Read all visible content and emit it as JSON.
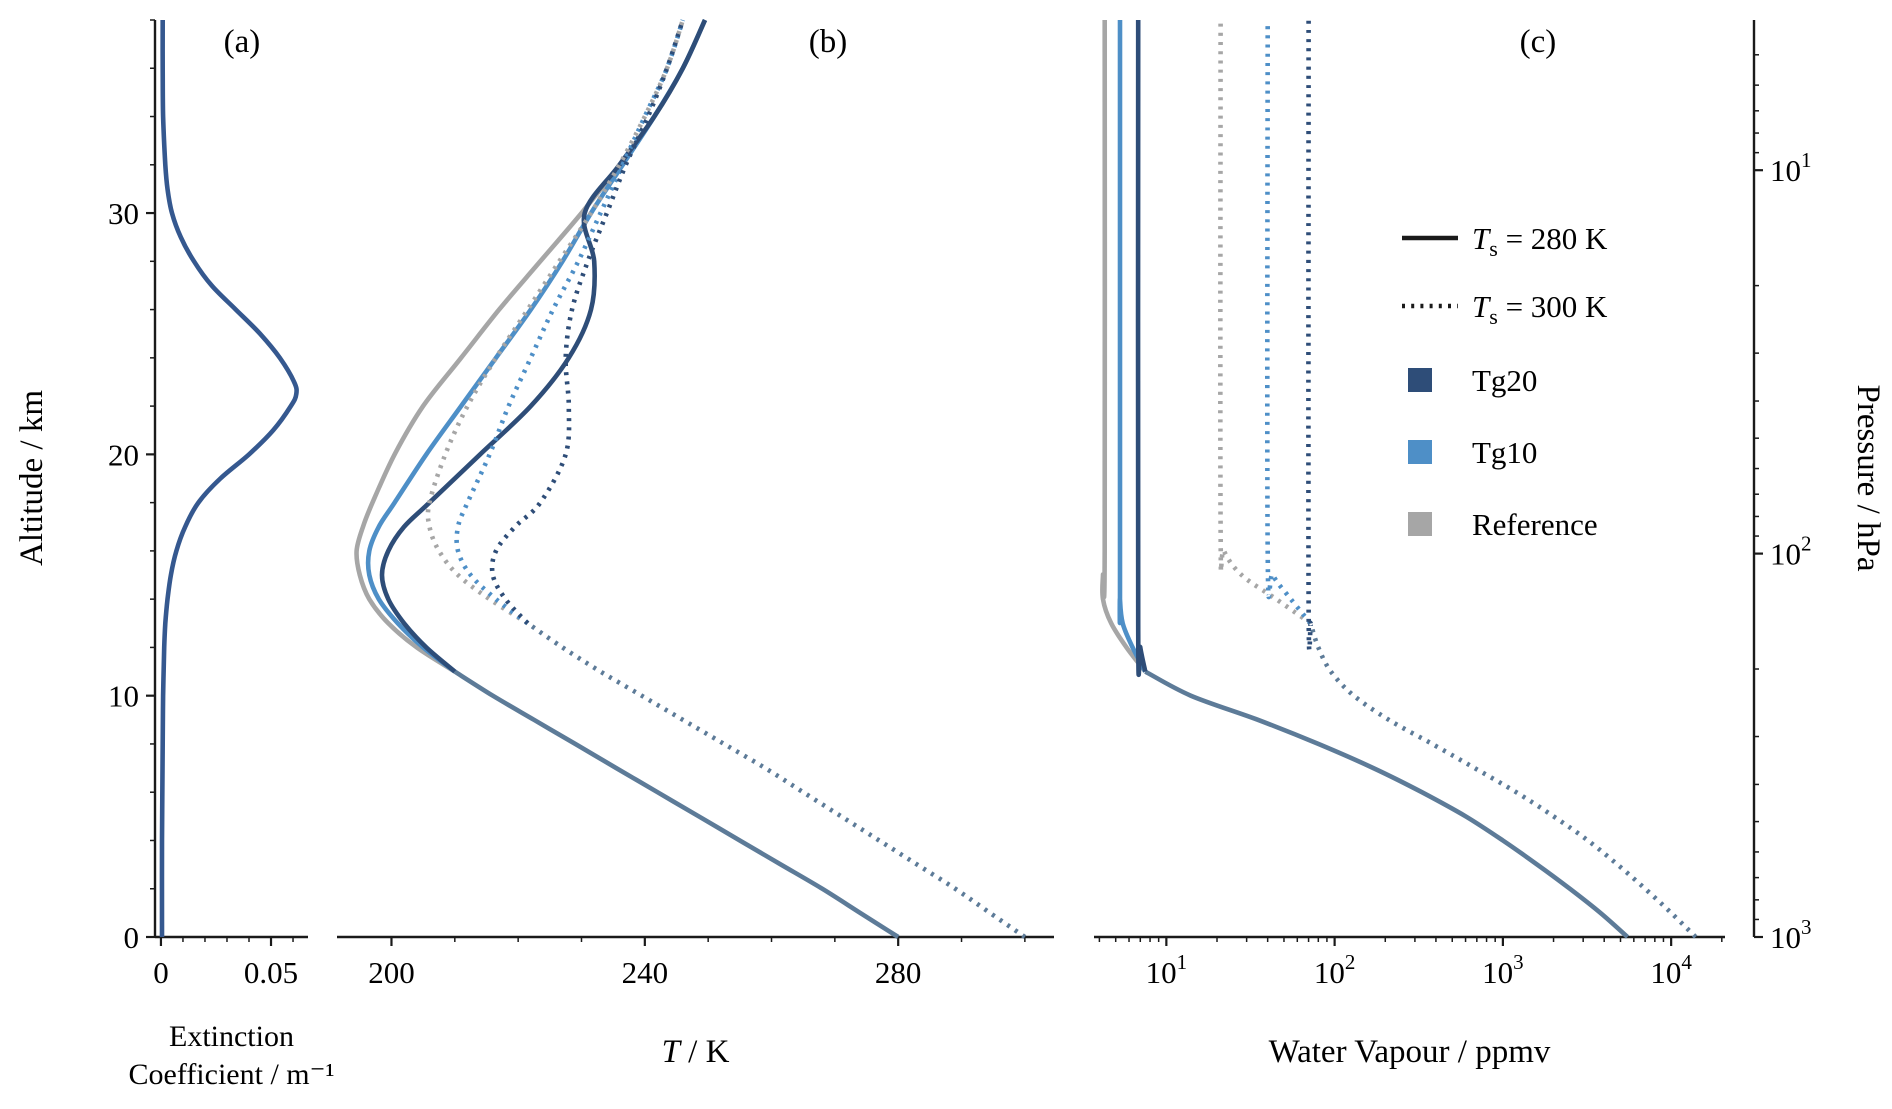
{
  "figure": {
    "background": "#ffffff",
    "colors": {
      "tg20": "#2e4d78",
      "tg10": "#4e8fc7",
      "reference": "#a6a6a6",
      "shared_troposphere": "#5d7b98",
      "extinction_line": "#35588f",
      "axis": "#1a1a1a"
    }
  },
  "chart_data": {
    "type": "line",
    "figure_kind": "atmospheric-vertical-profiles",
    "shared_y": {
      "label": "Altitude / km",
      "lim": [
        0,
        38
      ],
      "ticks": [
        0,
        10,
        20,
        30
      ],
      "tick_labels": [
        "0",
        "10",
        "20",
        "30"
      ],
      "minor_step": 2
    },
    "panels": [
      {
        "id": "extinction",
        "label": "(a)",
        "xlabel_lines": [
          "Extinction",
          "Coefficient / m⁻¹"
        ],
        "xscale": "linear",
        "xlim": [
          -0.0027,
          0.0668
        ],
        "xticks": [
          0,
          0.05
        ],
        "xtick_labels": [
          "0",
          "0.05"
        ],
        "xminor": [
          0.01,
          0.02,
          0.03,
          0.04,
          0.06
        ],
        "series": [
          {
            "name": "aerosol-extinction-profile",
            "color": "#35588f",
            "style": "solid",
            "alt": [
              0,
              4,
              8,
              10,
              12,
              13,
              14,
              15,
              16,
              17,
              18,
              19,
              20,
              21,
              22,
              22.5,
              23,
              24,
              25,
              26,
              27,
              28,
              29,
              30,
              31,
              32,
              34,
              36,
              38
            ],
            "values": [
              0.0005,
              0.0005,
              0.0008,
              0.001,
              0.0015,
              0.002,
              0.003,
              0.0045,
              0.007,
              0.011,
              0.017,
              0.027,
              0.04,
              0.051,
              0.059,
              0.0615,
              0.0605,
              0.054,
              0.045,
              0.034,
              0.023,
              0.015,
              0.009,
              0.005,
              0.003,
              0.002,
              0.001,
              0.0008,
              0.0008
            ]
          }
        ]
      },
      {
        "id": "temperature",
        "label": "(b)",
        "xlabel_math": {
          "italic": "T",
          "rest": " / K"
        },
        "xscale": "linear",
        "xlim": [
          191.4,
          304.6
        ],
        "xticks": [
          200,
          240,
          280
        ],
        "xtick_labels": [
          "200",
          "240",
          "280"
        ],
        "xminor": [
          210,
          220,
          230,
          250,
          260,
          270,
          290,
          300
        ],
        "series": [
          {
            "name": "troposphere-all-runs-Ts280",
            "color": "#5d7b98",
            "style": "solid",
            "alt": [
              0,
              1,
              2,
              3,
              4,
              5,
              6,
              7,
              8,
              9,
              10,
              11
            ],
            "values": [
              280,
              274,
              268,
              261.5,
              255,
              248.5,
              242,
              235.5,
              229,
              222.5,
              216,
              210
            ]
          },
          {
            "name": "reference-Ts280",
            "color": "#a6a6a6",
            "style": "solid",
            "alt": [
              11,
              12,
              13,
              14,
              15,
              16,
              17,
              18,
              20,
              22,
              24,
              26,
              28,
              30,
              32,
              34,
              36,
              38
            ],
            "values": [
              210,
              204,
              199.5,
              196.5,
              195,
              194.5,
              195.5,
              197,
              200.5,
              205,
              211,
              217,
              223.5,
              230,
              236,
              241.5,
              246,
              249.5
            ]
          },
          {
            "name": "tg10-Ts280",
            "color": "#4e8fc7",
            "style": "solid",
            "alt": [
              11,
              12,
              13,
              14,
              15,
              16,
              17,
              18,
              20,
              22,
              24,
              26,
              28,
              30,
              32,
              34,
              36,
              38
            ],
            "values": [
              210,
              205,
              201,
              198,
              196.5,
              196.5,
              198,
              200.5,
              205.5,
              211,
              216.5,
              222,
              227,
              231.5,
              236.5,
              241.5,
              246,
              249.5
            ]
          },
          {
            "name": "tg20-Ts280",
            "color": "#2e4d78",
            "style": "solid",
            "alt": [
              11,
              12,
              13,
              14,
              15,
              16,
              17,
              18,
              20,
              22,
              24,
              26,
              28,
              30,
              32,
              34,
              36,
              38
            ],
            "values": [
              210,
              205.5,
              202,
              199.5,
              198.5,
              199.5,
              202,
              206,
              214,
              222,
              228,
              231.5,
              232,
              230.5,
              236,
              241.5,
              246,
              249.5
            ]
          },
          {
            "name": "troposphere-all-runs-Ts300",
            "color": "#5d7b98",
            "style": "dotted",
            "alt": [
              0,
              1,
              2,
              3,
              4,
              5,
              6,
              7,
              8,
              9,
              10,
              11,
              12,
              13
            ],
            "values": [
              300,
              294.5,
              289,
              283,
              277,
              271,
              265,
              259,
              252.5,
              246,
              239.5,
              233,
              227,
              221.5
            ]
          },
          {
            "name": "reference-Ts300",
            "color": "#a6a6a6",
            "style": "dotted",
            "alt": [
              13,
              14,
              15,
              16,
              17,
              18,
              20,
              22,
              24,
              26,
              28,
              30,
              32,
              34,
              36,
              38
            ],
            "values": [
              221.5,
              215.5,
              210.5,
              207.5,
              206,
              206,
              208.5,
              212,
              216.5,
              221.5,
              226.5,
              231.5,
              236,
              240,
              243.5,
              246
            ]
          },
          {
            "name": "tg10-Ts300",
            "color": "#4e8fc7",
            "style": "dotted",
            "alt": [
              13,
              14,
              15,
              16,
              17,
              18,
              20,
              22,
              24,
              26,
              28,
              30,
              32,
              34,
              36,
              38
            ],
            "values": [
              221.5,
              216.5,
              212.5,
              210.5,
              210.5,
              212,
              215.5,
              218.5,
              222,
              225.5,
              229.5,
              233,
              236.5,
              240,
              243.5,
              246
            ]
          },
          {
            "name": "tg20-Ts300",
            "color": "#2e4d78",
            "style": "dotted",
            "alt": [
              13,
              14,
              15,
              16,
              17,
              18,
              20,
              22,
              24,
              26,
              28,
              30,
              32,
              34,
              36,
              38
            ],
            "values": [
              221.5,
              218,
              216,
              216.5,
              219.5,
              223.5,
              227.5,
              228,
              227.5,
              228.5,
              231,
              234,
              237,
              240.5,
              243.5,
              246
            ]
          }
        ]
      },
      {
        "id": "water-vapour",
        "label": "(c)",
        "xlabel": "Water Vapour / ppmv",
        "xscale": "log",
        "xlim_log10": [
          0.57,
          4.32
        ],
        "xticks_log10": [
          1,
          2,
          3,
          4
        ],
        "series": [
          {
            "name": "troposphere-all-runs-Ts280",
            "color": "#5d7b98",
            "style": "solid",
            "alt": [
              0,
              1,
              2,
              3,
              4,
              5,
              6,
              7,
              8,
              9,
              10,
              11
            ],
            "values": [
              5500,
              3800,
              2500,
              1600,
              1000,
              600,
              330,
              170,
              80,
              35,
              14,
              7.5
            ]
          },
          {
            "name": "reference-Ts280",
            "color": "#a6a6a6",
            "style": "solid",
            "alt": [
              11,
              12,
              13,
              14,
              15,
              16,
              38
            ],
            "values": [
              7.5,
              5.8,
              4.7,
              4.2,
              4.2,
              4.3,
              4.3
            ]
          },
          {
            "name": "tg10-Ts280",
            "color": "#4e8fc7",
            "style": "solid",
            "alt": [
              11,
              12,
              13,
              14,
              15,
              38
            ],
            "values": [
              7.5,
              6.3,
              5.5,
              5.3,
              5.3,
              5.3
            ]
          },
          {
            "name": "tg20-Ts280",
            "color": "#2e4d78",
            "style": "solid",
            "alt": [
              11,
              12,
              13,
              38
            ],
            "values": [
              7.5,
              7,
              6.8,
              6.8
            ]
          },
          {
            "name": "troposphere-all-runs-Ts300",
            "color": "#5d7b98",
            "style": "dotted",
            "alt": [
              0,
              1,
              2,
              3,
              4,
              5,
              6,
              7,
              8,
              9,
              10,
              11,
              12,
              13
            ],
            "values": [
              14000,
              10000,
              7000,
              4800,
              3200,
              2000,
              1200,
              680,
              380,
              210,
              130,
              95,
              80,
              72
            ]
          },
          {
            "name": "reference-Ts300",
            "color": "#a6a6a6",
            "style": "dotted",
            "alt": [
              13,
              14,
              15,
              16,
              17,
              38
            ],
            "values": [
              72,
              45,
              28,
              22,
              21,
              21
            ]
          },
          {
            "name": "tg10-Ts300",
            "color": "#4e8fc7",
            "style": "dotted",
            "alt": [
              13,
              14,
              15,
              16,
              38
            ],
            "values": [
              72,
              55,
              43,
              40,
              40
            ]
          },
          {
            "name": "tg20-Ts300",
            "color": "#2e4d78",
            "style": "dotted",
            "alt": [
              13,
              14,
              38
            ],
            "values": [
              72,
              70,
              70
            ]
          }
        ]
      }
    ],
    "pressure_axis": {
      "label": "Pressure / hPa",
      "surface_hpa": 1000,
      "scale_height_km": 6.9,
      "ticks_log10": [
        1,
        2,
        3
      ]
    },
    "legend": {
      "position": "upper-right-panel-c",
      "entries": [
        {
          "type": "line",
          "style": "solid",
          "color": "#1a1a1a",
          "label_math": {
            "italic": "T",
            "sub": "s",
            "rest": " = 280 K"
          }
        },
        {
          "type": "line",
          "style": "dotted",
          "color": "#1a1a1a",
          "label_math": {
            "italic": "T",
            "sub": "s",
            "rest": " = 300 K"
          }
        },
        {
          "type": "square",
          "color": "#2e4d78",
          "label": "Tg20"
        },
        {
          "type": "square",
          "color": "#4e8fc7",
          "label": "Tg10"
        },
        {
          "type": "square",
          "color": "#a6a6a6",
          "label": "Reference"
        }
      ]
    }
  }
}
